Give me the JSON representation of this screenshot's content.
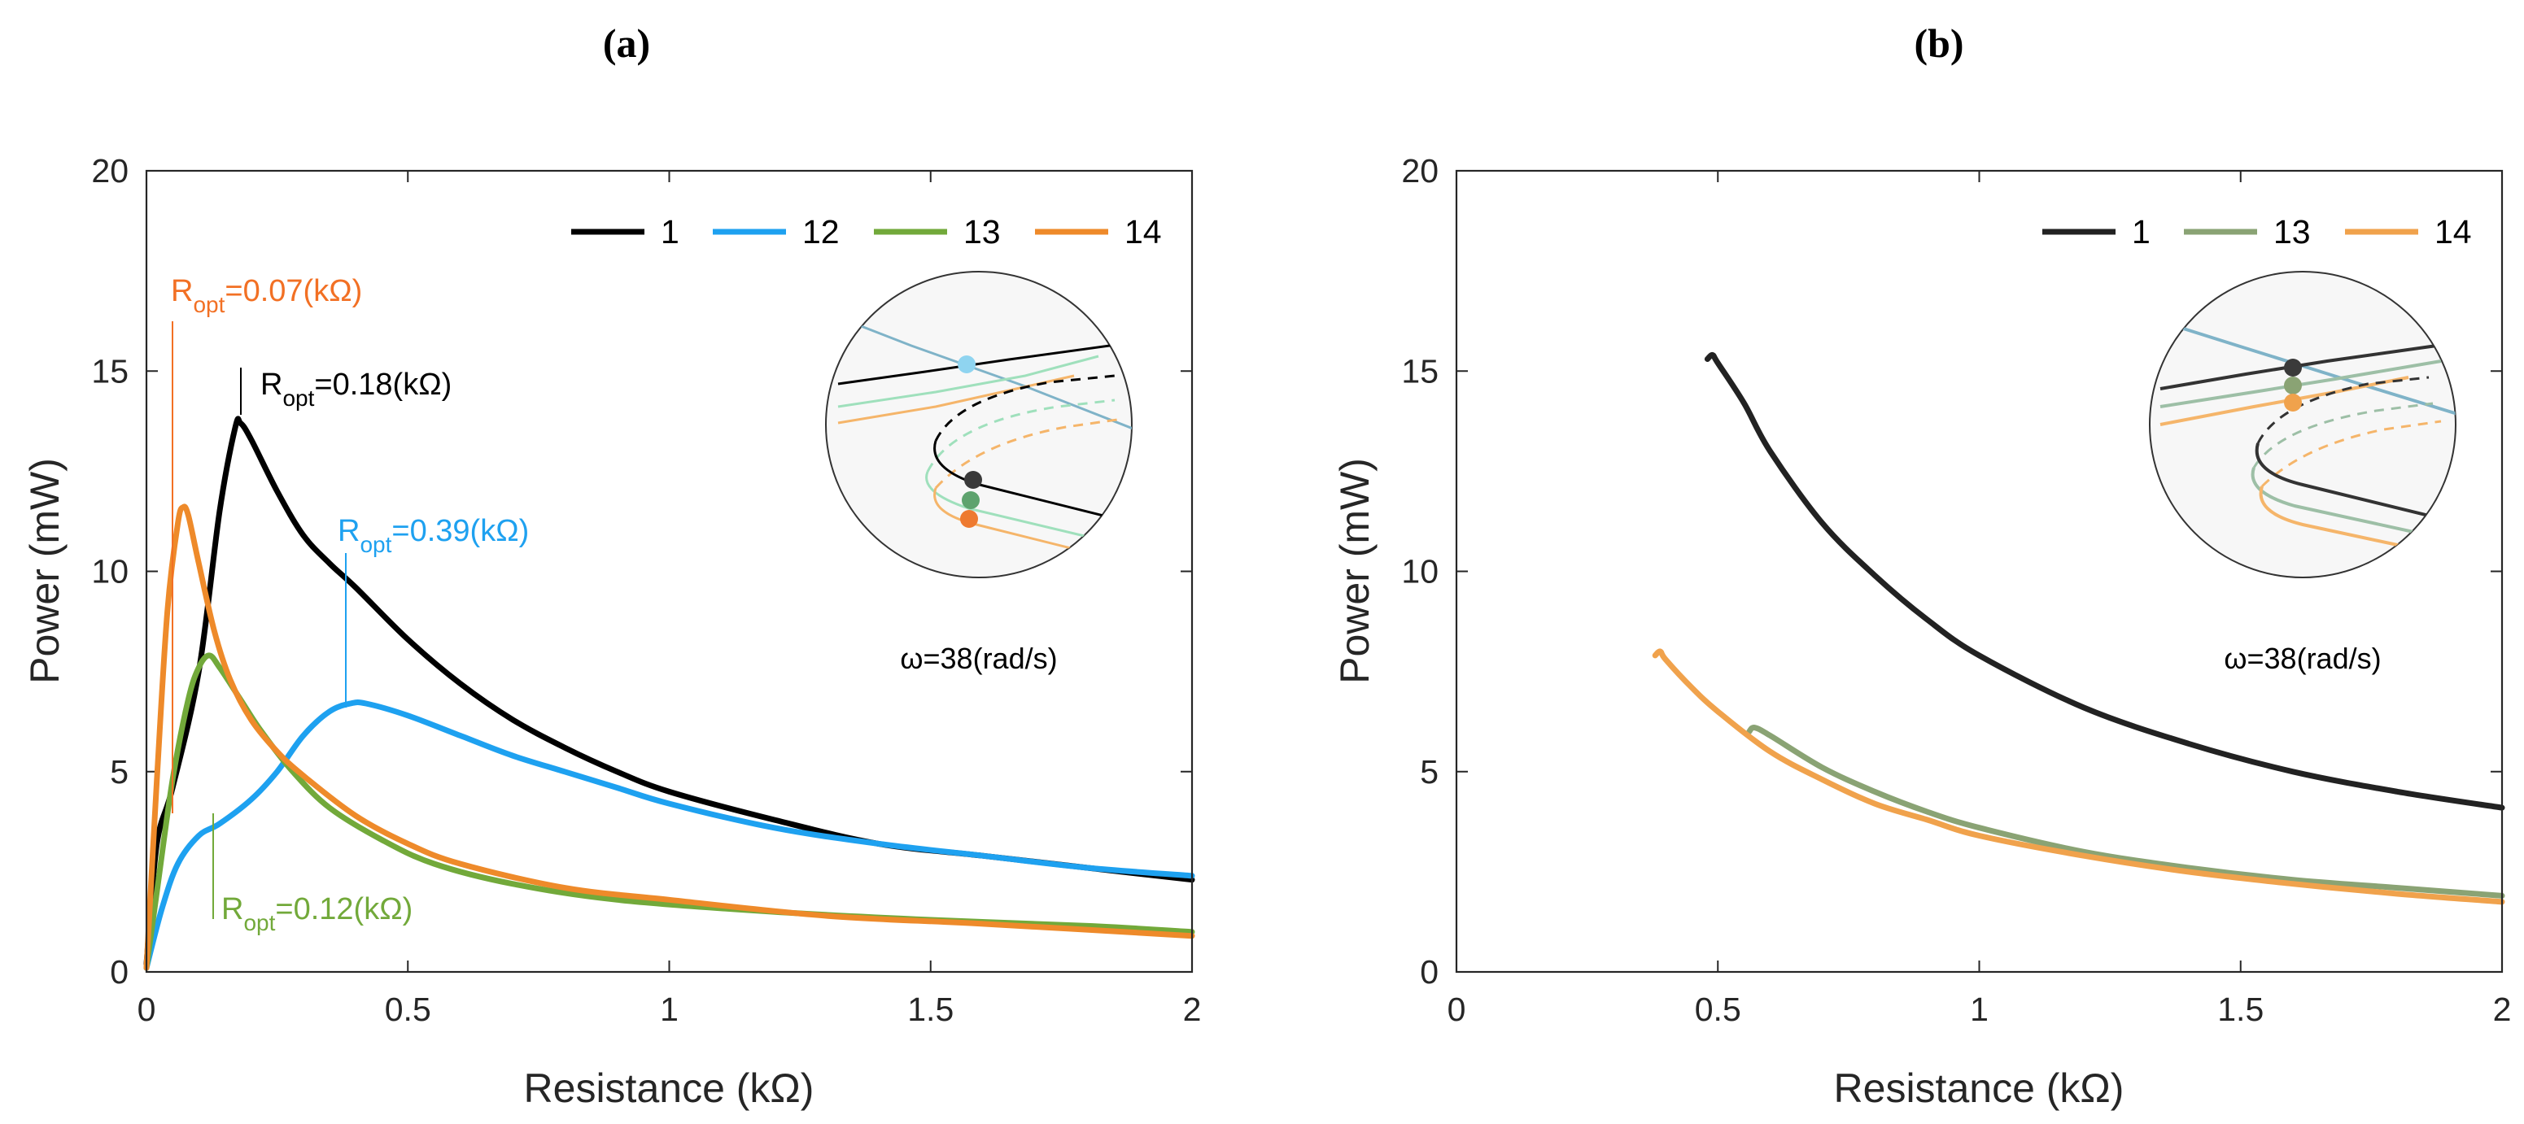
{
  "colors": {
    "black": "#000000",
    "blue": "#1ea1f0",
    "green": "#72a93a",
    "orange": "#ee8a2a",
    "orange_label": "#f27024",
    "dark_b": "#222222",
    "olive_b": "#8aa374",
    "orange_b": "#f0a24c",
    "inset_blue": "#7fb3c8",
    "inset_green": "#9fe0bc",
    "inset_orange": "#f5b56a"
  },
  "chart_data": [
    {
      "panel_label": "(a)",
      "type": "line",
      "xlabel": "Resistance (kΩ)",
      "ylabel": "Power (mW)",
      "xlim": [
        0,
        2
      ],
      "ylim": [
        0,
        20
      ],
      "xticks": [
        "0",
        "0.5",
        "1",
        "1.5",
        "2"
      ],
      "yticks": [
        "0",
        "5",
        "10",
        "15",
        "20"
      ],
      "legend": [
        "1",
        "12",
        "13",
        "14"
      ],
      "series": [
        {
          "name": "1",
          "color": "black",
          "x": [
            0.0,
            0.02,
            0.05,
            0.1,
            0.14,
            0.17,
            0.18,
            0.2,
            0.25,
            0.3,
            0.35,
            0.4,
            0.5,
            0.6,
            0.7,
            0.8,
            0.9,
            1.0,
            1.2,
            1.4,
            1.6,
            1.8,
            2.0
          ],
          "y": [
            0.2,
            3.2,
            4.6,
            7.5,
            11.5,
            13.6,
            13.7,
            13.3,
            12.0,
            10.9,
            10.2,
            9.6,
            8.3,
            7.2,
            6.3,
            5.6,
            5.0,
            4.5,
            3.8,
            3.2,
            2.9,
            2.6,
            2.3
          ]
        },
        {
          "name": "12",
          "color": "blue",
          "x": [
            0.0,
            0.03,
            0.06,
            0.1,
            0.14,
            0.2,
            0.25,
            0.3,
            0.35,
            0.39,
            0.42,
            0.5,
            0.6,
            0.7,
            0.8,
            0.9,
            1.0,
            1.2,
            1.4,
            1.6,
            1.8,
            2.0
          ],
          "y": [
            0.1,
            1.6,
            2.7,
            3.4,
            3.7,
            4.3,
            5.0,
            5.9,
            6.5,
            6.7,
            6.7,
            6.4,
            5.9,
            5.4,
            5.0,
            4.6,
            4.2,
            3.6,
            3.2,
            2.9,
            2.6,
            2.4
          ]
        },
        {
          "name": "13",
          "color": "green",
          "x": [
            0.0,
            0.02,
            0.05,
            0.08,
            0.1,
            0.12,
            0.14,
            0.18,
            0.22,
            0.28,
            0.35,
            0.45,
            0.55,
            0.7,
            0.9,
            1.2,
            1.5,
            1.8,
            2.0
          ],
          "y": [
            0.1,
            2.0,
            4.8,
            6.8,
            7.6,
            7.9,
            7.6,
            6.8,
            6.0,
            5.0,
            4.1,
            3.3,
            2.7,
            2.2,
            1.8,
            1.5,
            1.3,
            1.15,
            1.0
          ]
        },
        {
          "name": "14",
          "color": "orange",
          "x": [
            0.0,
            0.02,
            0.04,
            0.06,
            0.07,
            0.08,
            0.1,
            0.13,
            0.16,
            0.2,
            0.25,
            0.3,
            0.4,
            0.5,
            0.6,
            0.8,
            1.0,
            1.3,
            1.6,
            2.0
          ],
          "y": [
            0.1,
            4.8,
            9.0,
            11.2,
            11.6,
            11.4,
            10.2,
            8.5,
            7.3,
            6.3,
            5.5,
            4.9,
            3.9,
            3.2,
            2.7,
            2.1,
            1.8,
            1.4,
            1.2,
            0.9
          ]
        }
      ],
      "annotations": [
        {
          "base": "R",
          "sub": "opt",
          "rest": "=0.07(kΩ)",
          "color": "orange_label",
          "x": 0.07,
          "y": 11.6
        },
        {
          "base": "R",
          "sub": "opt",
          "rest": "=0.18(kΩ)",
          "color": "black",
          "x": 0.18,
          "y": 13.7
        },
        {
          "base": "R",
          "sub": "opt",
          "rest": "=0.39(kΩ)",
          "color": "blue",
          "x": 0.39,
          "y": 6.7
        },
        {
          "base": "R",
          "sub": "opt",
          "rest": "=0.12(kΩ)",
          "color": "green",
          "x": 0.12,
          "y": 7.9
        }
      ],
      "inset_caption": "ω=38(rad/s)"
    },
    {
      "panel_label": "(b)",
      "type": "line",
      "xlabel": "Resistance (kΩ)",
      "ylabel": "Power (mW)",
      "xlim": [
        0,
        2
      ],
      "ylim": [
        0,
        20
      ],
      "xticks": [
        "0",
        "0.5",
        "1",
        "1.5",
        "2"
      ],
      "yticks": [
        "0",
        "5",
        "10",
        "15",
        "20"
      ],
      "legend": [
        "1",
        "13",
        "14"
      ],
      "series": [
        {
          "name": "1",
          "color": "dark_b",
          "x": [
            0.48,
            0.49,
            0.5,
            0.55,
            0.6,
            0.7,
            0.8,
            0.9,
            1.0,
            1.2,
            1.4,
            1.6,
            1.8,
            2.0
          ],
          "y": [
            15.3,
            15.4,
            15.2,
            14.2,
            13.0,
            11.2,
            9.9,
            8.8,
            7.9,
            6.6,
            5.7,
            5.0,
            4.5,
            4.1
          ]
        },
        {
          "name": "13",
          "color": "olive_b",
          "x": [
            0.56,
            0.57,
            0.6,
            0.7,
            0.8,
            0.9,
            1.0,
            1.2,
            1.4,
            1.6,
            1.8,
            2.0
          ],
          "y": [
            6.0,
            6.1,
            5.9,
            5.1,
            4.5,
            4.0,
            3.6,
            3.0,
            2.6,
            2.3,
            2.1,
            1.9
          ]
        },
        {
          "name": "14",
          "color": "orange_b",
          "x": [
            0.38,
            0.39,
            0.4,
            0.45,
            0.5,
            0.6,
            0.7,
            0.8,
            0.9,
            1.0,
            1.2,
            1.4,
            1.6,
            1.8,
            2.0
          ],
          "y": [
            7.9,
            8.0,
            7.8,
            7.1,
            6.5,
            5.5,
            4.8,
            4.2,
            3.8,
            3.4,
            2.9,
            2.5,
            2.2,
            1.95,
            1.75
          ]
        }
      ],
      "annotations": [],
      "inset_caption": "ω=38(rad/s)"
    }
  ]
}
